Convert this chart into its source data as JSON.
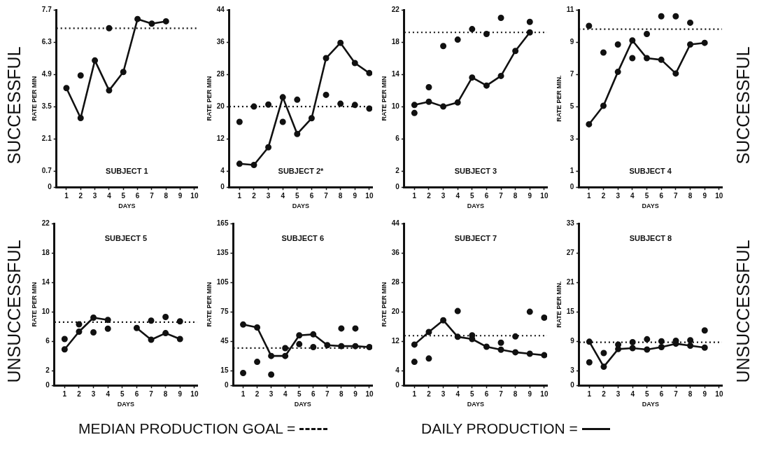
{
  "chart_data": [
    {
      "type": "line",
      "title": "SUBJECT 1",
      "xlabel": "DAYS",
      "ylabel": "RATE PER MIN",
      "xlim": [
        0.3,
        10.2
      ],
      "xticks": [
        1,
        2,
        3,
        4,
        5,
        6,
        7,
        8,
        9,
        10
      ],
      "ylim": [
        0,
        7.7
      ],
      "yticks": [
        0,
        0.7,
        2.1,
        3.5,
        4.9,
        6.3,
        7.7
      ],
      "marker": "circle",
      "annotations": [
        "SUCCESSFUL"
      ],
      "ref_lines": [
        {
          "axis": "y",
          "value": 6.9,
          "line_style": "dotted",
          "color": "#111111"
        }
      ],
      "series": [
        {
          "color": "#111111",
          "x": [
            1,
            2,
            3,
            4,
            5,
            6,
            7,
            8
          ],
          "values": [
            4.3,
            3.0,
            5.5,
            4.2,
            5.0,
            7.3,
            7.1,
            7.2
          ]
        },
        {
          "type": "scatter",
          "color": "#111111",
          "x": [
            2,
            4
          ],
          "values": [
            4.85,
            6.9
          ]
        }
      ]
    },
    {
      "type": "line",
      "title": "SUBJECT 2*",
      "xlabel": "DAYS",
      "ylabel": "RATE PER MIN",
      "xlim": [
        0.3,
        10.2
      ],
      "xticks": [
        1,
        2,
        3,
        4,
        5,
        6,
        7,
        8,
        9,
        10
      ],
      "ylim": [
        0,
        44
      ],
      "yticks": [
        0,
        4,
        12,
        20,
        28,
        36,
        44
      ],
      "marker": "circle",
      "ref_lines": [
        {
          "axis": "y",
          "value": 20,
          "line_style": "dotted",
          "color": "#111111"
        }
      ],
      "series": [
        {
          "color": "#111111",
          "x": [
            1,
            2,
            3,
            4,
            5,
            6,
            7,
            8,
            9,
            10
          ],
          "values": [
            5.8,
            5.5,
            9.9,
            22.3,
            13.2,
            17.1,
            32,
            35.8,
            30.8,
            28.3
          ]
        },
        {
          "type": "scatter",
          "color": "#111111",
          "x": [
            1,
            2,
            3,
            4,
            5,
            7,
            8,
            9,
            10
          ],
          "values": [
            16.2,
            20,
            20.5,
            16.2,
            21.7,
            22.9,
            20.7,
            20.4,
            19.5
          ]
        }
      ]
    },
    {
      "type": "line",
      "title": "SUBJECT 3",
      "xlabel": "DAYS",
      "ylabel": "RATE PER MIN",
      "xlim": [
        0.3,
        10.2
      ],
      "xticks": [
        1,
        2,
        3,
        4,
        5,
        6,
        7,
        8,
        9,
        10
      ],
      "ylim": [
        0,
        22
      ],
      "yticks": [
        0,
        2,
        6,
        10,
        14,
        18,
        22
      ],
      "marker": "circle",
      "ref_lines": [
        {
          "axis": "y",
          "value": 19.2,
          "line_style": "dotted",
          "color": "#111111"
        }
      ],
      "series": [
        {
          "color": "#111111",
          "x": [
            1,
            2,
            3,
            4,
            5,
            6,
            7,
            8,
            9
          ],
          "values": [
            10.2,
            10.6,
            10.0,
            10.5,
            13.6,
            12.6,
            13.8,
            16.9,
            19.2
          ]
        },
        {
          "type": "scatter",
          "color": "#111111",
          "x": [
            1,
            2,
            3,
            4,
            5,
            6,
            7,
            9
          ],
          "values": [
            9.2,
            12.4,
            17.5,
            18.3,
            19.6,
            19,
            21,
            20.5
          ]
        }
      ]
    },
    {
      "type": "line",
      "title": "SUBJECT 4",
      "xlabel": "DAYS",
      "ylabel": "RATE PER MIN.",
      "xlim": [
        0.3,
        10.2
      ],
      "xticks": [
        1,
        2,
        3,
        4,
        5,
        6,
        7,
        8,
        9,
        10
      ],
      "ylim": [
        0,
        11
      ],
      "yticks": [
        0,
        1,
        3,
        5,
        7,
        9,
        11
      ],
      "marker": "circle",
      "annotations": [
        "SUCCESSFUL"
      ],
      "ref_lines": [
        {
          "axis": "y",
          "value": 9.8,
          "line_style": "dotted",
          "color": "#111111"
        }
      ],
      "series": [
        {
          "color": "#111111",
          "x": [
            1,
            2,
            3,
            4,
            5,
            6,
            7,
            8,
            9
          ],
          "values": [
            3.9,
            5.05,
            7.15,
            9.1,
            8.0,
            7.9,
            7.05,
            8.85,
            8.95
          ]
        },
        {
          "type": "scatter",
          "color": "#111111",
          "x": [
            1,
            2,
            3,
            4,
            5,
            6,
            7,
            8
          ],
          "values": [
            10.0,
            8.35,
            8.85,
            8.0,
            9.5,
            10.6,
            10.6,
            10.2
          ]
        }
      ]
    },
    {
      "type": "line",
      "title": "SUBJECT 5",
      "xlabel": "DAYS",
      "ylabel": "RATE PER MIN",
      "xlim": [
        0.3,
        10.2
      ],
      "xticks": [
        1,
        2,
        3,
        4,
        5,
        6,
        7,
        8,
        9,
        10
      ],
      "ylim": [
        0,
        22
      ],
      "yticks": [
        0,
        2,
        6,
        10,
        14,
        18,
        22
      ],
      "marker": "circle",
      "annotations": [
        "UNSUCCESSFUL",
        "MEDIAN PRODUCTION GOAL ="
      ],
      "ref_lines": [
        {
          "axis": "y",
          "value": 8.6,
          "line_style": "dotted",
          "color": "#111111"
        }
      ],
      "series": [
        {
          "color": "#111111",
          "x": [
            1,
            2,
            3,
            4,
            5,
            6,
            7,
            8,
            9
          ],
          "values": [
            4.9,
            7.3,
            9.2,
            8.9,
            null,
            7.8,
            6.2,
            7.1,
            6.3
          ]
        },
        {
          "type": "scatter",
          "color": "#111111",
          "x": [
            1,
            2,
            3,
            4,
            7,
            8,
            9
          ],
          "values": [
            6.3,
            8.3,
            7.2,
            7.7,
            8.8,
            9.3,
            8.7
          ]
        }
      ]
    },
    {
      "type": "line",
      "title": "SUBJECT 6",
      "xlabel": "DAYS",
      "ylabel": "RATE PER MIN",
      "xlim": [
        0.3,
        10.2
      ],
      "xticks": [
        1,
        2,
        3,
        4,
        5,
        6,
        7,
        8,
        9,
        10
      ],
      "ylim": [
        0,
        165
      ],
      "yticks": [
        0,
        15,
        45,
        75,
        105,
        135,
        165
      ],
      "marker": "circle",
      "ref_lines": [
        {
          "axis": "y",
          "value": 38,
          "line_style": "dotted",
          "color": "#111111"
        }
      ],
      "series": [
        {
          "color": "#111111",
          "x": [
            1,
            2,
            3,
            4,
            5,
            6,
            7,
            8,
            9,
            10
          ],
          "values": [
            62,
            59,
            30,
            30,
            51,
            52,
            41,
            40,
            40,
            39
          ]
        },
        {
          "type": "scatter",
          "color": "#111111",
          "x": [
            1,
            2,
            3,
            4,
            5,
            6,
            8,
            9
          ],
          "values": [
            12.6,
            24,
            11,
            38,
            42,
            39,
            58,
            58
          ]
        }
      ]
    },
    {
      "type": "line",
      "title": "SUBJECT 7",
      "xlabel": "DAYS",
      "ylabel": "RATE PER MIN",
      "xlim": [
        0.3,
        10.2
      ],
      "xticks": [
        1,
        2,
        3,
        4,
        5,
        6,
        7,
        8,
        9,
        10
      ],
      "ylim": [
        0,
        44
      ],
      "yticks": [
        0,
        4,
        12,
        20,
        28,
        36,
        44
      ],
      "marker": "circle",
      "annotations": [
        "DAILY PRODUCTION ="
      ],
      "ref_lines": [
        {
          "axis": "y",
          "value": 13.5,
          "line_style": "dotted",
          "color": "#111111"
        }
      ],
      "series": [
        {
          "color": "#111111",
          "x": [
            1,
            2,
            3,
            4,
            5,
            6,
            7,
            8,
            9,
            10
          ],
          "values": [
            11.1,
            14.5,
            17.7,
            13.2,
            12.6,
            10.5,
            9.7,
            9.0,
            8.6,
            8.2
          ]
        },
        {
          "type": "scatter",
          "color": "#111111",
          "x": [
            1,
            2,
            4,
            5,
            7,
            8,
            9,
            10
          ],
          "values": [
            6.4,
            7.3,
            20.2,
            13.6,
            11.6,
            13.3,
            20,
            18.4
          ]
        }
      ]
    },
    {
      "type": "line",
      "title": "SUBJECT 8",
      "xlabel": "DAYS",
      "ylabel": "RATE PER MIN.",
      "xlim": [
        0.3,
        10.2
      ],
      "xticks": [
        1,
        2,
        3,
        4,
        5,
        6,
        7,
        8,
        9,
        10
      ],
      "ylim": [
        0,
        33
      ],
      "yticks": [
        0,
        3,
        9,
        15,
        21,
        27,
        33
      ],
      "marker": "circle",
      "annotations": [
        "UNSUCCESSFUL"
      ],
      "ref_lines": [
        {
          "axis": "y",
          "value": 8.8,
          "line_style": "dotted",
          "color": "#111111"
        }
      ],
      "series": [
        {
          "color": "#111111",
          "x": [
            1,
            2,
            3,
            4,
            5,
            6,
            7,
            8,
            9
          ],
          "values": [
            8.9,
            3.8,
            7.4,
            7.6,
            7.3,
            7.8,
            8.5,
            8.1,
            7.7
          ]
        },
        {
          "type": "scatter",
          "color": "#111111",
          "x": [
            1,
            2,
            3,
            4,
            5,
            6,
            7,
            8,
            9
          ],
          "values": [
            4.7,
            6.6,
            8.3,
            8.8,
            9.4,
            9.0,
            9.1,
            9.2,
            11.2
          ]
        }
      ]
    }
  ]
}
